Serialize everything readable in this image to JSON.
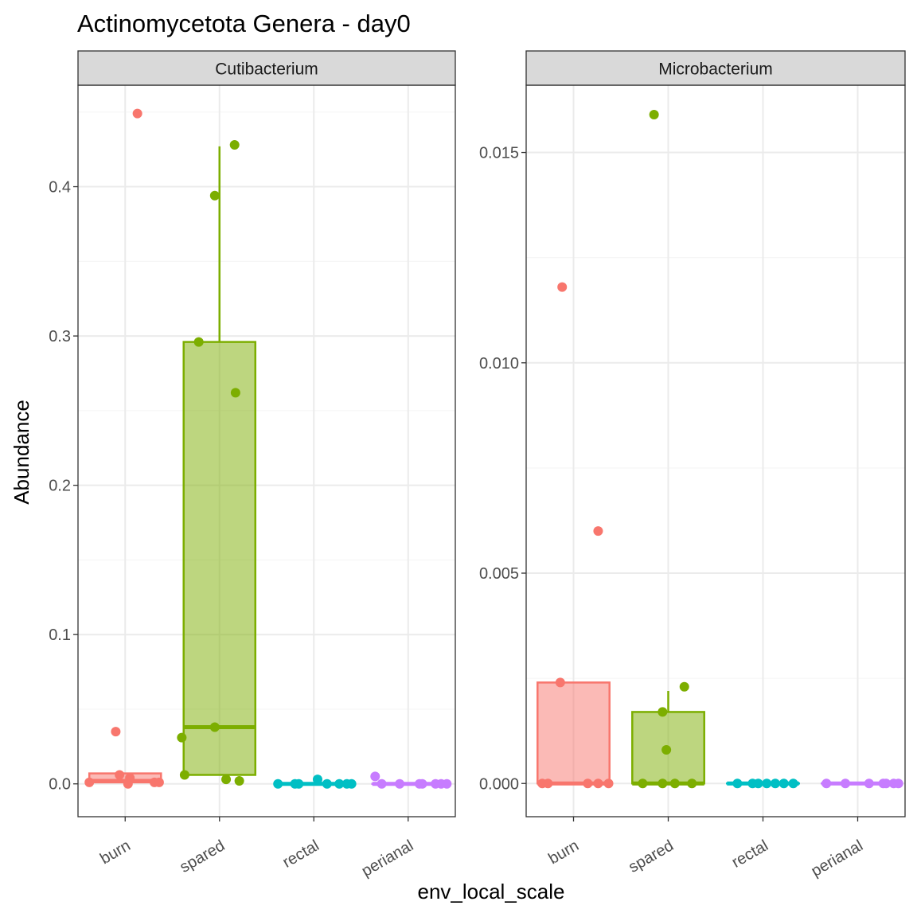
{
  "title": "Actinomycetota Genera - day0",
  "xlabel": "env_local_scale",
  "ylabel": "Abundance",
  "colors": {
    "burn": "#F8766D",
    "spared": "#7CAE00",
    "rectal": "#00BFC4",
    "perianal": "#C77CFF",
    "strip_bg": "#D9D9D9",
    "grid_major": "#EBEBEB",
    "grid_minor": "#F5F5F5",
    "axis_text": "#4D4D4D"
  },
  "chart_data": [
    {
      "type": "boxplot",
      "facet": "Cutibacterium",
      "categories": [
        "burn",
        "spared",
        "rectal",
        "perianal"
      ],
      "ylim": [
        -0.022,
        0.468
      ],
      "yticks": [
        0.0,
        0.1,
        0.2,
        0.3,
        0.4
      ],
      "ytick_labels": [
        "0.0",
        "0.1",
        "0.2",
        "0.3",
        "0.4"
      ],
      "grid": true,
      "boxes": [
        {
          "category": "burn",
          "q1": 0.001,
          "median": 0.002,
          "q3": 0.007,
          "whisker_low": 0.0,
          "whisker_high": 0.007
        },
        {
          "category": "spared",
          "q1": 0.006,
          "median": 0.038,
          "q3": 0.296,
          "whisker_low": 0.006,
          "whisker_high": 0.427
        },
        {
          "category": "rectal",
          "q1": 0.0,
          "median": 0.0,
          "q3": 0.0,
          "whisker_low": 0.0,
          "whisker_high": 0.0
        },
        {
          "category": "perianal",
          "q1": 0.0,
          "median": 0.0,
          "q3": 0.0,
          "whisker_low": 0.0,
          "whisker_high": 0.0
        }
      ],
      "points": [
        {
          "category": "burn",
          "jitter": 0.13,
          "y": 0.449
        },
        {
          "category": "burn",
          "jitter": -0.1,
          "y": 0.035
        },
        {
          "category": "burn",
          "jitter": -0.06,
          "y": 0.006
        },
        {
          "category": "burn",
          "jitter": 0.05,
          "y": 0.004
        },
        {
          "category": "burn",
          "jitter": -0.38,
          "y": 0.001
        },
        {
          "category": "burn",
          "jitter": 0.03,
          "y": 0.0
        },
        {
          "category": "burn",
          "jitter": 0.31,
          "y": 0.001
        },
        {
          "category": "burn",
          "jitter": 0.36,
          "y": 0.001
        },
        {
          "category": "spared",
          "jitter": 0.16,
          "y": 0.428
        },
        {
          "category": "spared",
          "jitter": -0.05,
          "y": 0.394
        },
        {
          "category": "spared",
          "jitter": -0.22,
          "y": 0.296
        },
        {
          "category": "spared",
          "jitter": 0.17,
          "y": 0.262
        },
        {
          "category": "spared",
          "jitter": -0.05,
          "y": 0.038
        },
        {
          "category": "spared",
          "jitter": -0.4,
          "y": 0.031
        },
        {
          "category": "spared",
          "jitter": -0.37,
          "y": 0.006
        },
        {
          "category": "spared",
          "jitter": 0.07,
          "y": 0.003
        },
        {
          "category": "spared",
          "jitter": 0.21,
          "y": 0.002
        },
        {
          "category": "rectal",
          "jitter": -0.38,
          "y": 0.0
        },
        {
          "category": "rectal",
          "jitter": -0.2,
          "y": 0.0
        },
        {
          "category": "rectal",
          "jitter": -0.16,
          "y": 0.0
        },
        {
          "category": "rectal",
          "jitter": 0.04,
          "y": 0.003
        },
        {
          "category": "rectal",
          "jitter": 0.14,
          "y": 0.0
        },
        {
          "category": "rectal",
          "jitter": 0.27,
          "y": 0.0
        },
        {
          "category": "rectal",
          "jitter": 0.35,
          "y": 0.0
        },
        {
          "category": "rectal",
          "jitter": 0.4,
          "y": 0.0
        },
        {
          "category": "perianal",
          "jitter": -0.35,
          "y": 0.005
        },
        {
          "category": "perianal",
          "jitter": -0.28,
          "y": 0.0
        },
        {
          "category": "perianal",
          "jitter": -0.09,
          "y": 0.0
        },
        {
          "category": "perianal",
          "jitter": 0.12,
          "y": 0.0
        },
        {
          "category": "perianal",
          "jitter": 0.15,
          "y": 0.0
        },
        {
          "category": "perianal",
          "jitter": 0.29,
          "y": 0.0
        },
        {
          "category": "perianal",
          "jitter": 0.35,
          "y": 0.0
        },
        {
          "category": "perianal",
          "jitter": 0.41,
          "y": 0.0
        }
      ]
    },
    {
      "type": "boxplot",
      "facet": "Microbacterium",
      "categories": [
        "burn",
        "spared",
        "rectal",
        "perianal"
      ],
      "ylim": [
        -0.00079,
        0.0166
      ],
      "yticks": [
        0.0,
        0.005,
        0.01,
        0.015
      ],
      "ytick_labels": [
        "0.000",
        "0.005",
        "0.010",
        "0.015"
      ],
      "grid": true,
      "boxes": [
        {
          "category": "burn",
          "q1": 0.0,
          "median": 0.0,
          "q3": 0.0024,
          "whisker_low": 0.0,
          "whisker_high": 0.0024
        },
        {
          "category": "spared",
          "q1": 0.0,
          "median": 0.0,
          "q3": 0.0017,
          "whisker_low": 0.0,
          "whisker_high": 0.0022
        },
        {
          "category": "rectal",
          "q1": 0.0,
          "median": 0.0,
          "q3": 0.0,
          "whisker_low": 0.0,
          "whisker_high": 0.0
        },
        {
          "category": "perianal",
          "q1": 0.0,
          "median": 0.0,
          "q3": 0.0,
          "whisker_low": 0.0,
          "whisker_high": 0.0
        }
      ],
      "points": [
        {
          "category": "burn",
          "jitter": -0.12,
          "y": 0.0118
        },
        {
          "category": "burn",
          "jitter": 0.26,
          "y": 0.006
        },
        {
          "category": "burn",
          "jitter": -0.14,
          "y": 0.0024
        },
        {
          "category": "burn",
          "jitter": -0.33,
          "y": 0.0
        },
        {
          "category": "burn",
          "jitter": -0.27,
          "y": 0.0
        },
        {
          "category": "burn",
          "jitter": 0.15,
          "y": 0.0
        },
        {
          "category": "burn",
          "jitter": 0.26,
          "y": 0.0
        },
        {
          "category": "burn",
          "jitter": 0.37,
          "y": 0.0
        },
        {
          "category": "spared",
          "jitter": -0.15,
          "y": 0.0159
        },
        {
          "category": "spared",
          "jitter": 0.17,
          "y": 0.0023
        },
        {
          "category": "spared",
          "jitter": -0.06,
          "y": 0.0017
        },
        {
          "category": "spared",
          "jitter": -0.02,
          "y": 0.0008
        },
        {
          "category": "spared",
          "jitter": -0.27,
          "y": 0.0
        },
        {
          "category": "spared",
          "jitter": -0.06,
          "y": 0.0
        },
        {
          "category": "spared",
          "jitter": 0.07,
          "y": 0.0
        },
        {
          "category": "spared",
          "jitter": 0.25,
          "y": 0.0
        },
        {
          "category": "rectal",
          "jitter": -0.27,
          "y": 0.0
        },
        {
          "category": "rectal",
          "jitter": -0.11,
          "y": 0.0
        },
        {
          "category": "rectal",
          "jitter": -0.05,
          "y": 0.0
        },
        {
          "category": "rectal",
          "jitter": 0.04,
          "y": 0.0
        },
        {
          "category": "rectal",
          "jitter": 0.13,
          "y": 0.0
        },
        {
          "category": "rectal",
          "jitter": 0.22,
          "y": 0.0
        },
        {
          "category": "rectal",
          "jitter": 0.32,
          "y": 0.0
        },
        {
          "category": "perianal",
          "jitter": -0.33,
          "y": 0.0
        },
        {
          "category": "perianal",
          "jitter": -0.13,
          "y": 0.0
        },
        {
          "category": "perianal",
          "jitter": 0.12,
          "y": 0.0
        },
        {
          "category": "perianal",
          "jitter": 0.27,
          "y": 0.0
        },
        {
          "category": "perianal",
          "jitter": 0.3,
          "y": 0.0
        },
        {
          "category": "perianal",
          "jitter": 0.38,
          "y": 0.0
        },
        {
          "category": "perianal",
          "jitter": 0.43,
          "y": 0.0
        }
      ]
    }
  ]
}
